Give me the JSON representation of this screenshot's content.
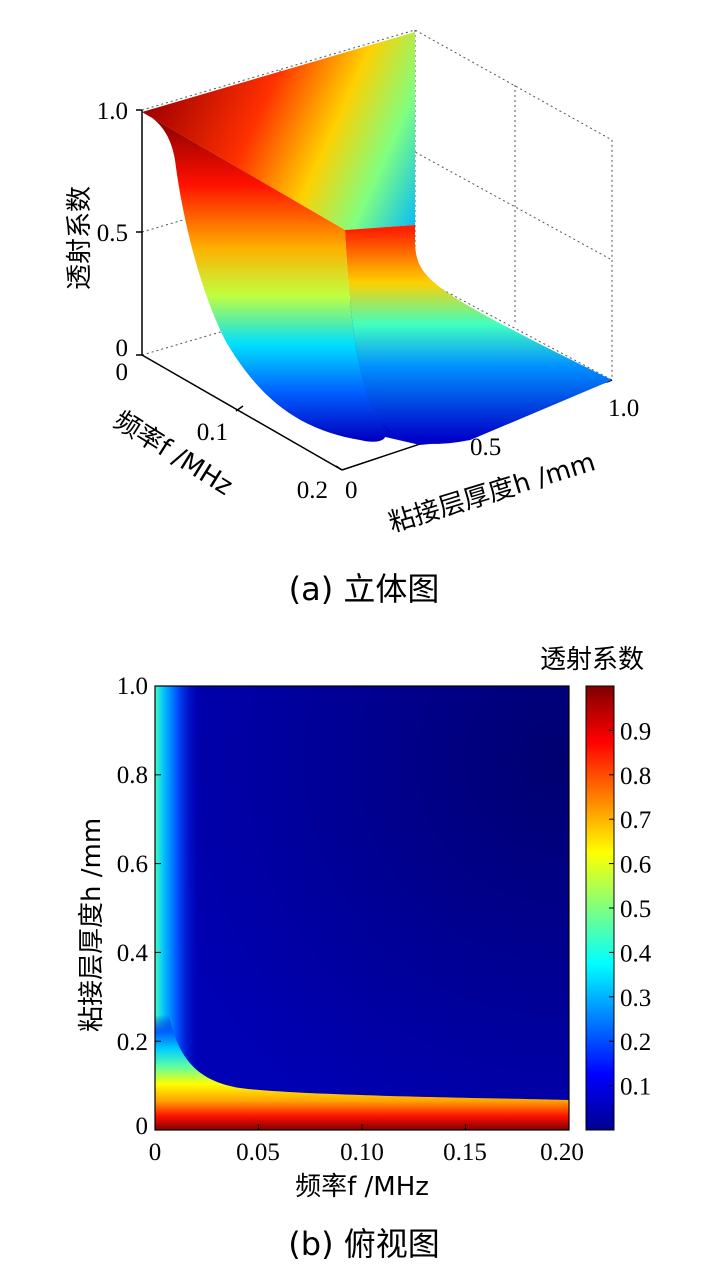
{
  "chart_data": [
    {
      "type": "surface",
      "caption": "(a)  立体图",
      "zlabel": "透射系数",
      "xlabel": "频率f /MHz",
      "ylabel": "粘接层厚度h /mm",
      "x_ticks": [
        "0",
        "0.1",
        "0.2"
      ],
      "y_ticks": [
        "0",
        "0.5",
        "1.0"
      ],
      "z_ticks": [
        "0",
        "0.5",
        "1.0"
      ],
      "xlim": [
        0,
        0.2
      ],
      "ylim": [
        0,
        1.0
      ],
      "zlim": [
        0,
        1.0
      ],
      "colormap": "jet",
      "grid": true,
      "surface_note_values": {
        "transmission_at_f0": 1.0,
        "transmission_at_h0": 1.0,
        "transmission_far_field": 0.0
      }
    },
    {
      "type": "heatmap",
      "caption": "(b)  俯视图",
      "xlabel": "频率f /MHz",
      "ylabel": "粘接层厚度h /mm",
      "colorbar_label": "透射系数",
      "x_ticks": [
        "0",
        "0.05",
        "0.10",
        "0.15",
        "0.20"
      ],
      "y_ticks": [
        "0",
        "0.2",
        "0.4",
        "0.6",
        "0.8",
        "1.0"
      ],
      "colorbar_ticks": [
        "0.1",
        "0.2",
        "0.3",
        "0.4",
        "0.5",
        "0.6",
        "0.7",
        "0.8",
        "0.9"
      ],
      "xlim": [
        0,
        0.2
      ],
      "ylim": [
        0,
        1.0
      ],
      "clim": [
        0,
        1.0
      ],
      "colormap": "jet"
    }
  ]
}
